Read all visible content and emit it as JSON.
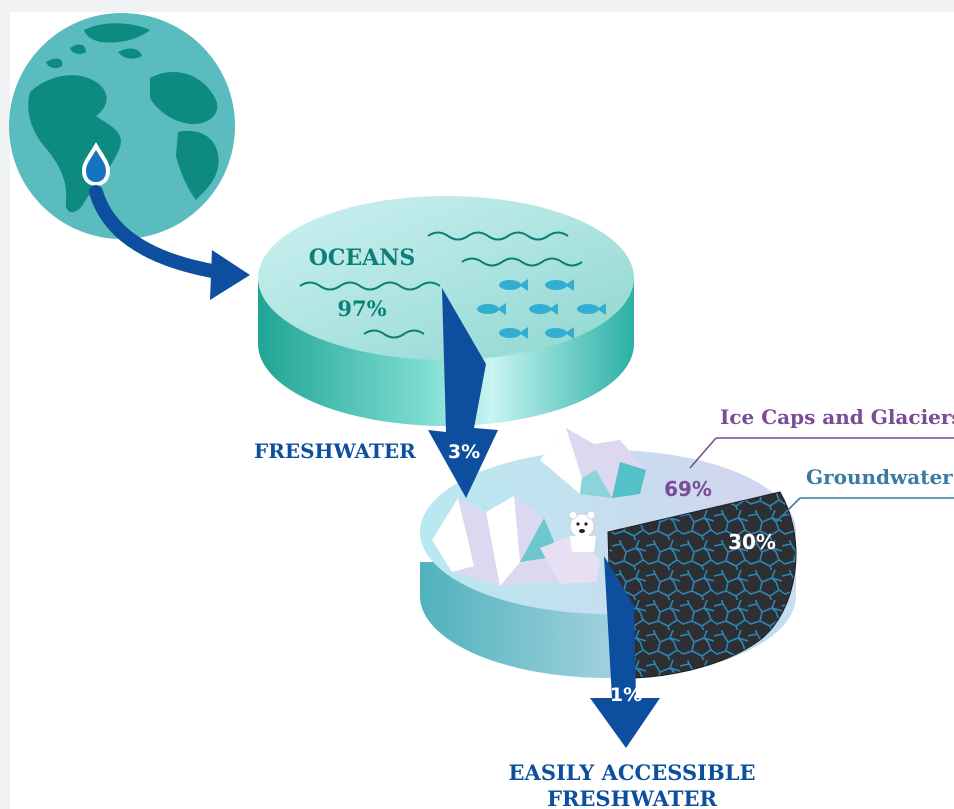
{
  "labels": {
    "oceans_title": "OCEANS",
    "oceans_pct": "97%",
    "freshwater": "FRESHWATER",
    "freshwater_pct": "3%",
    "ice_title": "Ice Caps and Glaciers",
    "ice_pct": "69%",
    "ground_title": "Groundwater",
    "ground_pct": "30%",
    "accessible_pct": "1%",
    "accessible_line1": "EASILY ACCESSIBLE",
    "accessible_line2": "FRESHWATER"
  },
  "colors": {
    "navy": "#0d4f9e",
    "teal": "#2f9f96",
    "ocean_dark": "#0b7f78",
    "purple": "#7a4b96",
    "ground_blue": "#3a7aa3",
    "globe_sea": "#5bbcc0",
    "globe_land": "#0e8b80",
    "drop": "#1673c0"
  },
  "icons": [
    "globe-icon",
    "water-drop-icon",
    "fish-icon",
    "polar-bear-icon",
    "iceberg-icon"
  ]
}
